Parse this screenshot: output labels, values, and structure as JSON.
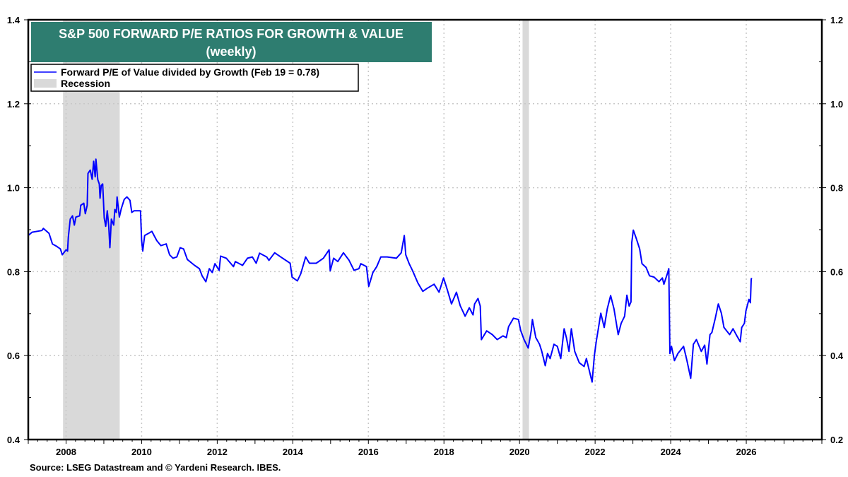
{
  "chart_data": {
    "type": "line",
    "title": "S&P 500 FORWARD P/E RATIOS FOR GROWTH & VALUE",
    "subtitle": "(weekly)",
    "source": "Source: LSEG Datastream and © Yardeni Research. IBES.",
    "xlim": [
      2007,
      2028
    ],
    "ylim": [
      0.4,
      1.4
    ],
    "ylim_right": [
      0.2,
      1.2
    ],
    "x_ticks": [
      "2008",
      "2010",
      "2012",
      "2014",
      "2016",
      "2018",
      "2020",
      "2022",
      "2024",
      "2026"
    ],
    "y_ticks_left": [
      "0.4",
      "0.6",
      "0.8",
      "1.0",
      "1.2",
      "1.4"
    ],
    "y_ticks_right": [
      "0.2",
      "0.4",
      "0.6",
      "0.8",
      "1.0",
      "1.2"
    ],
    "grid": true,
    "legend_position": "top-left",
    "colors": {
      "series": "#0000ff",
      "recession": "#d9d9d9",
      "title_bg": "#2e7d70"
    },
    "legend": {
      "series_label": "Forward P/E of Value divided by Growth (Feb 19 = 0.78)",
      "recession_label": "Recession"
    },
    "recessions": [
      [
        2007.92,
        2009.42
      ],
      [
        2020.08,
        2020.25
      ]
    ],
    "series": [
      {
        "name": "Forward P/E of Value divided by Growth (Feb 19 = 0.78)",
        "points": [
          [
            2007.0,
            0.886
          ],
          [
            2007.1,
            0.894
          ],
          [
            2007.36,
            0.898
          ],
          [
            2007.4,
            0.903
          ],
          [
            2007.55,
            0.891
          ],
          [
            2007.64,
            0.866
          ],
          [
            2007.74,
            0.861
          ],
          [
            2007.85,
            0.854
          ],
          [
            2007.9,
            0.84
          ],
          [
            2008.0,
            0.852
          ],
          [
            2008.04,
            0.849
          ],
          [
            2008.06,
            0.882
          ],
          [
            2008.11,
            0.925
          ],
          [
            2008.17,
            0.933
          ],
          [
            2008.22,
            0.911
          ],
          [
            2008.26,
            0.93
          ],
          [
            2008.36,
            0.933
          ],
          [
            2008.39,
            0.958
          ],
          [
            2008.47,
            0.963
          ],
          [
            2008.51,
            0.938
          ],
          [
            2008.56,
            0.958
          ],
          [
            2008.58,
            1.034
          ],
          [
            2008.64,
            1.042
          ],
          [
            2008.69,
            1.02
          ],
          [
            2008.73,
            1.063
          ],
          [
            2008.77,
            1.026
          ],
          [
            2008.79,
            1.068
          ],
          [
            2008.84,
            1.019
          ],
          [
            2008.88,
            1.009
          ],
          [
            2008.9,
            0.975
          ],
          [
            2008.93,
            1.005
          ],
          [
            2008.97,
            1.009
          ],
          [
            2009.01,
            0.928
          ],
          [
            2009.05,
            0.908
          ],
          [
            2009.09,
            0.945
          ],
          [
            2009.13,
            0.908
          ],
          [
            2009.16,
            0.857
          ],
          [
            2009.2,
            0.925
          ],
          [
            2009.26,
            0.911
          ],
          [
            2009.29,
            0.948
          ],
          [
            2009.33,
            0.941
          ],
          [
            2009.35,
            0.978
          ],
          [
            2009.41,
            0.93
          ],
          [
            2009.46,
            0.95
          ],
          [
            2009.54,
            0.972
          ],
          [
            2009.61,
            0.978
          ],
          [
            2009.69,
            0.97
          ],
          [
            2009.74,
            0.941
          ],
          [
            2009.8,
            0.945
          ],
          [
            2009.97,
            0.945
          ],
          [
            2010.0,
            0.874
          ],
          [
            2010.03,
            0.849
          ],
          [
            2010.08,
            0.886
          ],
          [
            2010.18,
            0.891
          ],
          [
            2010.27,
            0.896
          ],
          [
            2010.4,
            0.874
          ],
          [
            2010.51,
            0.862
          ],
          [
            2010.65,
            0.866
          ],
          [
            2010.74,
            0.84
          ],
          [
            2010.83,
            0.832
          ],
          [
            2010.93,
            0.835
          ],
          [
            2011.02,
            0.857
          ],
          [
            2011.11,
            0.854
          ],
          [
            2011.21,
            0.829
          ],
          [
            2011.4,
            0.815
          ],
          [
            2011.53,
            0.807
          ],
          [
            2011.6,
            0.79
          ],
          [
            2011.7,
            0.776
          ],
          [
            2011.79,
            0.807
          ],
          [
            2011.87,
            0.798
          ],
          [
            2011.94,
            0.819
          ],
          [
            2012.05,
            0.803
          ],
          [
            2012.09,
            0.837
          ],
          [
            2012.24,
            0.832
          ],
          [
            2012.43,
            0.812
          ],
          [
            2012.48,
            0.824
          ],
          [
            2012.67,
            0.815
          ],
          [
            2012.8,
            0.832
          ],
          [
            2012.93,
            0.835
          ],
          [
            2013.03,
            0.82
          ],
          [
            2013.12,
            0.844
          ],
          [
            2013.31,
            0.835
          ],
          [
            2013.37,
            0.827
          ],
          [
            2013.52,
            0.845
          ],
          [
            2013.68,
            0.835
          ],
          [
            2013.93,
            0.82
          ],
          [
            2013.98,
            0.787
          ],
          [
            2014.12,
            0.778
          ],
          [
            2014.21,
            0.795
          ],
          [
            2014.34,
            0.835
          ],
          [
            2014.44,
            0.82
          ],
          [
            2014.62,
            0.82
          ],
          [
            2014.81,
            0.832
          ],
          [
            2014.96,
            0.852
          ],
          [
            2014.99,
            0.802
          ],
          [
            2015.08,
            0.832
          ],
          [
            2015.19,
            0.824
          ],
          [
            2015.34,
            0.845
          ],
          [
            2015.49,
            0.827
          ],
          [
            2015.62,
            0.803
          ],
          [
            2015.75,
            0.807
          ],
          [
            2015.8,
            0.819
          ],
          [
            2015.95,
            0.812
          ],
          [
            2016.01,
            0.765
          ],
          [
            2016.12,
            0.798
          ],
          [
            2016.22,
            0.812
          ],
          [
            2016.33,
            0.835
          ],
          [
            2016.5,
            0.835
          ],
          [
            2016.74,
            0.832
          ],
          [
            2016.87,
            0.845
          ],
          [
            2016.95,
            0.886
          ],
          [
            2016.99,
            0.84
          ],
          [
            2017.08,
            0.819
          ],
          [
            2017.17,
            0.802
          ],
          [
            2017.31,
            0.773
          ],
          [
            2017.44,
            0.753
          ],
          [
            2017.55,
            0.76
          ],
          [
            2017.74,
            0.77
          ],
          [
            2017.87,
            0.751
          ],
          [
            2017.99,
            0.785
          ],
          [
            2018.09,
            0.756
          ],
          [
            2018.2,
            0.723
          ],
          [
            2018.33,
            0.751
          ],
          [
            2018.43,
            0.719
          ],
          [
            2018.56,
            0.694
          ],
          [
            2018.67,
            0.714
          ],
          [
            2018.77,
            0.697
          ],
          [
            2018.81,
            0.723
          ],
          [
            2018.9,
            0.736
          ],
          [
            2018.96,
            0.718
          ],
          [
            2018.99,
            0.638
          ],
          [
            2019.13,
            0.659
          ],
          [
            2019.28,
            0.65
          ],
          [
            2019.41,
            0.638
          ],
          [
            2019.56,
            0.647
          ],
          [
            2019.65,
            0.643
          ],
          [
            2019.71,
            0.669
          ],
          [
            2019.84,
            0.689
          ],
          [
            2019.97,
            0.686
          ],
          [
            2020.03,
            0.66
          ],
          [
            2020.12,
            0.638
          ],
          [
            2020.23,
            0.618
          ],
          [
            2020.31,
            0.66
          ],
          [
            2020.34,
            0.686
          ],
          [
            2020.43,
            0.643
          ],
          [
            2020.53,
            0.627
          ],
          [
            2020.59,
            0.61
          ],
          [
            2020.68,
            0.576
          ],
          [
            2020.74,
            0.605
          ],
          [
            2020.81,
            0.593
          ],
          [
            2020.91,
            0.627
          ],
          [
            2021.0,
            0.622
          ],
          [
            2021.09,
            0.593
          ],
          [
            2021.18,
            0.664
          ],
          [
            2021.24,
            0.643
          ],
          [
            2021.31,
            0.61
          ],
          [
            2021.37,
            0.664
          ],
          [
            2021.46,
            0.61
          ],
          [
            2021.58,
            0.583
          ],
          [
            2021.71,
            0.574
          ],
          [
            2021.77,
            0.593
          ],
          [
            2021.86,
            0.559
          ],
          [
            2021.92,
            0.537
          ],
          [
            2021.98,
            0.6
          ],
          [
            2022.03,
            0.633
          ],
          [
            2022.09,
            0.667
          ],
          [
            2022.15,
            0.701
          ],
          [
            2022.24,
            0.667
          ],
          [
            2022.32,
            0.711
          ],
          [
            2022.41,
            0.743
          ],
          [
            2022.5,
            0.711
          ],
          [
            2022.61,
            0.65
          ],
          [
            2022.69,
            0.677
          ],
          [
            2022.78,
            0.694
          ],
          [
            2022.84,
            0.744
          ],
          [
            2022.9,
            0.718
          ],
          [
            2022.95,
            0.728
          ],
          [
            2022.97,
            0.869
          ],
          [
            2023.01,
            0.899
          ],
          [
            2023.09,
            0.879
          ],
          [
            2023.18,
            0.854
          ],
          [
            2023.24,
            0.819
          ],
          [
            2023.35,
            0.81
          ],
          [
            2023.44,
            0.79
          ],
          [
            2023.56,
            0.787
          ],
          [
            2023.69,
            0.776
          ],
          [
            2023.78,
            0.785
          ],
          [
            2023.82,
            0.77
          ],
          [
            2023.91,
            0.795
          ],
          [
            2023.95,
            0.807
          ],
          [
            2023.98,
            0.605
          ],
          [
            2024.02,
            0.622
          ],
          [
            2024.1,
            0.588
          ],
          [
            2024.19,
            0.605
          ],
          [
            2024.34,
            0.622
          ],
          [
            2024.43,
            0.588
          ],
          [
            2024.53,
            0.546
          ],
          [
            2024.6,
            0.627
          ],
          [
            2024.68,
            0.638
          ],
          [
            2024.81,
            0.61
          ],
          [
            2024.9,
            0.625
          ],
          [
            2024.96,
            0.58
          ],
          [
            2025.04,
            0.65
          ],
          [
            2025.09,
            0.655
          ],
          [
            2025.18,
            0.689
          ],
          [
            2025.26,
            0.723
          ],
          [
            2025.34,
            0.701
          ],
          [
            2025.41,
            0.667
          ],
          [
            2025.56,
            0.65
          ],
          [
            2025.65,
            0.664
          ],
          [
            2025.75,
            0.647
          ],
          [
            2025.84,
            0.633
          ],
          [
            2025.88,
            0.667
          ],
          [
            2025.95,
            0.677
          ],
          [
            2025.99,
            0.706
          ],
          [
            2026.07,
            0.734
          ],
          [
            2026.11,
            0.726
          ],
          [
            2026.13,
            0.781
          ],
          [
            2026.14,
            0.785
          ]
        ]
      }
    ]
  }
}
